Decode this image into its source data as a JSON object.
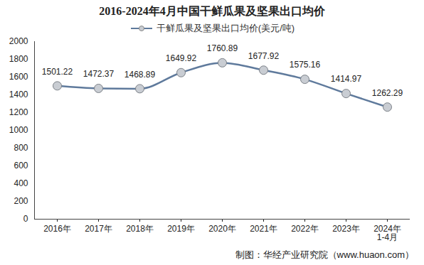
{
  "chart_data": {
    "type": "line",
    "title": "2016-2024年4月中国干鲜瓜果及坚果出口均价",
    "caption": "制图：华经产业研究院（www.huaon.com）",
    "categories": [
      "2016年",
      "2017年",
      "2018年",
      "2019年",
      "2020年",
      "2021年",
      "2022年",
      "2023年",
      "2024年\n1-4月"
    ],
    "series": [
      {
        "name": "干鲜瓜果及坚果出口均价(美元/吨)",
        "color": "#5f7a9c",
        "marker": "circle",
        "line_style": "solid",
        "values": [
          1501.22,
          1472.37,
          1468.89,
          1649.92,
          1760.89,
          1677.92,
          1575.16,
          1414.97,
          1262.29
        ]
      }
    ],
    "ylim": [
      0,
      2000
    ],
    "yticks": [
      0,
      200,
      400,
      600,
      800,
      1000,
      1200,
      1400,
      1600,
      1800,
      2000
    ],
    "grid": false,
    "legend": "top",
    "data_labels": true
  }
}
